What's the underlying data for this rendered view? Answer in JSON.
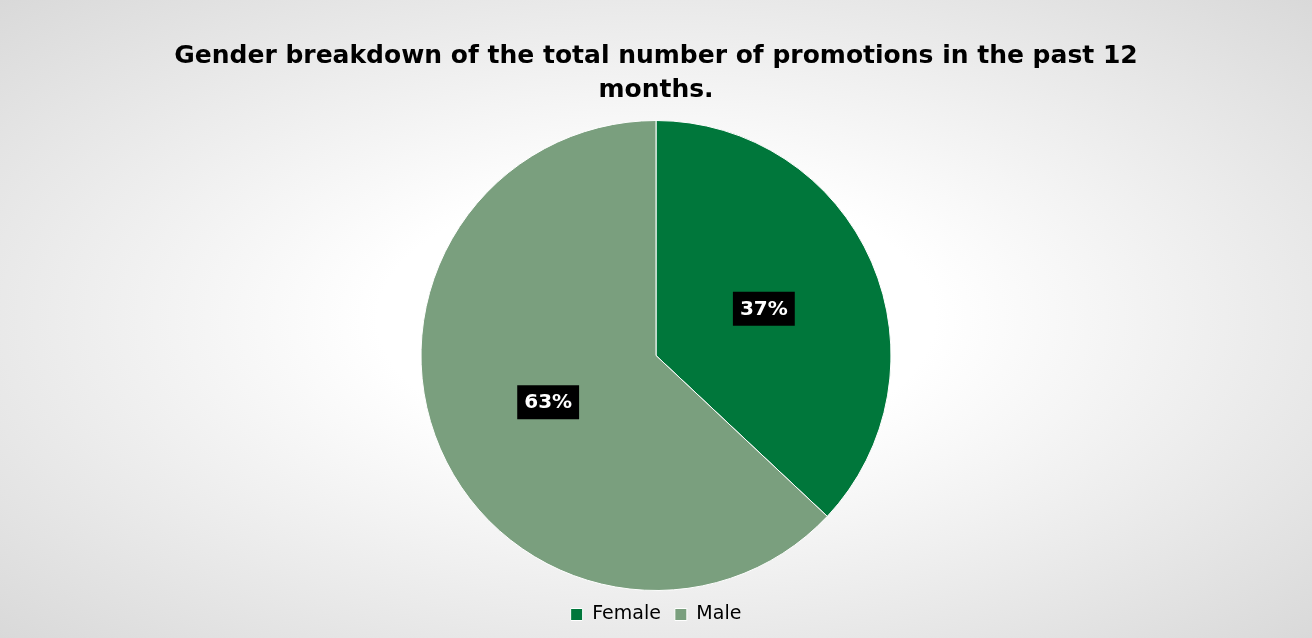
{
  "chart_data": {
    "type": "pie",
    "title": "Gender breakdown of the total number of promotions in the past 12 months.",
    "categories": [
      "Female",
      "Male"
    ],
    "values": [
      37,
      63
    ],
    "colors": [
      "#00773b",
      "#7a9f7e"
    ],
    "value_labels": [
      "37%",
      "63%"
    ],
    "legend": "bottom"
  }
}
